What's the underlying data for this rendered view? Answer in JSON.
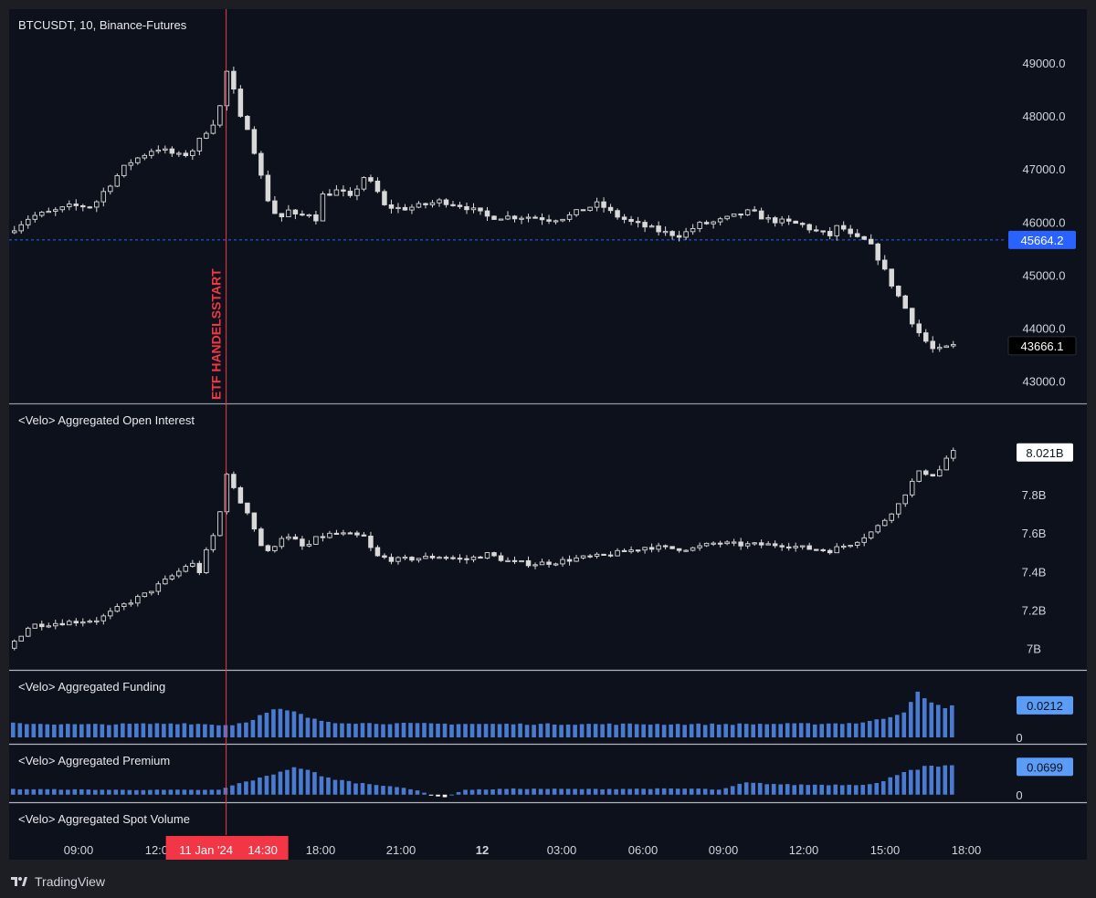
{
  "header": {
    "symbol_title": "BTCUSDT, 10, Binance-Futures"
  },
  "annotation": {
    "label": "ETF HANDELSSTART",
    "color": "#f23645",
    "crosshair_time_label": "11 Jan '24",
    "crosshair_clock_label": "14:30"
  },
  "footer": {
    "brand": "TradingView"
  },
  "colors": {
    "background": "#0d111b",
    "candle_up": "#d9d9d9",
    "candle_down": "#d9d9d9",
    "bar_blue": "#4a7bd0",
    "accent_blue": "#2962ff",
    "separator": "#787b86"
  },
  "chart_data": [
    {
      "type": "candlestick",
      "title": "BTCUSDT, 10, Binance-Futures",
      "ylim": [
        42700,
        49500
      ],
      "yticks": [
        43000,
        44000,
        45000,
        46000,
        47000,
        48000,
        49000
      ],
      "ytick_labels": [
        "43000.0",
        "44000.0",
        "45000.0",
        "46000.0",
        "47000.0",
        "48000.0",
        "49000.0"
      ],
      "last_value_label": "43666.1",
      "horizontal_line": {
        "value": 45664.2,
        "label": "45664.2"
      },
      "close_path": [
        [
          0,
          45800
        ],
        [
          20,
          46100
        ],
        [
          40,
          46200
        ],
        [
          55,
          46300
        ],
        [
          75,
          46300
        ],
        [
          85,
          46600
        ],
        [
          105,
          47100
        ],
        [
          130,
          47400
        ],
        [
          150,
          47250
        ],
        [
          160,
          47300
        ],
        [
          175,
          47750
        ],
        [
          185,
          48000
        ],
        [
          190,
          48900
        ],
        [
          196,
          48700
        ],
        [
          202,
          48000
        ],
        [
          210,
          47800
        ],
        [
          218,
          47200
        ],
        [
          225,
          46600
        ],
        [
          232,
          46200
        ],
        [
          240,
          46100
        ],
        [
          248,
          46250
        ],
        [
          255,
          46000
        ],
        [
          262,
          46300
        ],
        [
          268,
          45900
        ],
        [
          275,
          46500
        ],
        [
          290,
          46600
        ],
        [
          300,
          46450
        ],
        [
          312,
          46850
        ],
        [
          322,
          46650
        ],
        [
          330,
          46300
        ],
        [
          345,
          46250
        ],
        [
          360,
          46300
        ],
        [
          380,
          46400
        ],
        [
          400,
          46300
        ],
        [
          420,
          46100
        ],
        [
          440,
          46100
        ],
        [
          460,
          46100
        ],
        [
          475,
          46050
        ],
        [
          490,
          46100
        ],
        [
          505,
          46250
        ],
        [
          518,
          46350
        ],
        [
          530,
          46150
        ],
        [
          545,
          46000
        ],
        [
          560,
          45900
        ],
        [
          575,
          45800
        ],
        [
          590,
          45750
        ],
        [
          605,
          45950
        ],
        [
          620,
          46000
        ],
        [
          635,
          46100
        ],
        [
          650,
          46200
        ],
        [
          665,
          46050
        ],
        [
          680,
          46000
        ],
        [
          695,
          45950
        ],
        [
          710,
          45800
        ],
        [
          720,
          45750
        ],
        [
          728,
          45950
        ],
        [
          740,
          45700
        ],
        [
          750,
          45650
        ],
        [
          758,
          45500
        ],
        [
          765,
          45200
        ],
        [
          772,
          44900
        ],
        [
          780,
          44600
        ],
        [
          788,
          44300
        ],
        [
          795,
          44000
        ],
        [
          802,
          43800
        ],
        [
          810,
          43600
        ],
        [
          818,
          43580
        ],
        [
          825,
          43666.1
        ]
      ]
    },
    {
      "type": "candlestick",
      "title": "<Velo> Aggregated Open Interest",
      "ylim": [
        6.93,
        8.12
      ],
      "yticks": [
        7.0,
        7.2,
        7.4,
        7.6,
        7.8
      ],
      "ytick_labels": [
        "7B",
        "7.2B",
        "7.4B",
        "7.6B",
        "7.8B"
      ],
      "last_value_label": "8.021B",
      "close_path": [
        [
          0,
          7.0
        ],
        [
          20,
          7.12
        ],
        [
          40,
          7.13
        ],
        [
          60,
          7.14
        ],
        [
          80,
          7.15
        ],
        [
          100,
          7.22
        ],
        [
          120,
          7.28
        ],
        [
          135,
          7.34
        ],
        [
          150,
          7.4
        ],
        [
          160,
          7.45
        ],
        [
          168,
          7.4
        ],
        [
          175,
          7.52
        ],
        [
          185,
          7.65
        ],
        [
          190,
          7.95
        ],
        [
          196,
          7.85
        ],
        [
          205,
          7.75
        ],
        [
          212,
          7.7
        ],
        [
          220,
          7.55
        ],
        [
          228,
          7.5
        ],
        [
          240,
          7.58
        ],
        [
          250,
          7.57
        ],
        [
          260,
          7.52
        ],
        [
          270,
          7.57
        ],
        [
          285,
          7.6
        ],
        [
          300,
          7.59
        ],
        [
          312,
          7.58
        ],
        [
          322,
          7.48
        ],
        [
          340,
          7.46
        ],
        [
          360,
          7.47
        ],
        [
          380,
          7.48
        ],
        [
          400,
          7.46
        ],
        [
          420,
          7.49
        ],
        [
          440,
          7.45
        ],
        [
          460,
          7.44
        ],
        [
          480,
          7.45
        ],
        [
          500,
          7.47
        ],
        [
          520,
          7.48
        ],
        [
          545,
          7.51
        ],
        [
          560,
          7.53
        ],
        [
          580,
          7.52
        ],
        [
          600,
          7.52
        ],
        [
          620,
          7.55
        ],
        [
          640,
          7.54
        ],
        [
          660,
          7.54
        ],
        [
          680,
          7.54
        ],
        [
          700,
          7.52
        ],
        [
          720,
          7.51
        ],
        [
          740,
          7.55
        ],
        [
          755,
          7.6
        ],
        [
          765,
          7.65
        ],
        [
          772,
          7.7
        ],
        [
          780,
          7.75
        ],
        [
          790,
          7.85
        ],
        [
          800,
          7.93
        ],
        [
          808,
          7.9
        ],
        [
          815,
          7.92
        ],
        [
          825,
          8.021
        ]
      ]
    },
    {
      "type": "bar",
      "title": "<Velo> Aggregated Funding",
      "ylim": [
        0,
        0.032
      ],
      "yticks": [
        0
      ],
      "ytick_labels": [
        "0"
      ],
      "last_value_label": "0.0212",
      "profile": [
        [
          0,
          0.0093
        ],
        [
          60,
          0.0085
        ],
        [
          120,
          0.009
        ],
        [
          150,
          0.0093
        ],
        [
          190,
          0.008
        ],
        [
          205,
          0.0105
        ],
        [
          218,
          0.015
        ],
        [
          230,
          0.0185
        ],
        [
          245,
          0.017
        ],
        [
          262,
          0.012
        ],
        [
          280,
          0.01
        ],
        [
          310,
          0.0093
        ],
        [
          420,
          0.0088
        ],
        [
          540,
          0.0088
        ],
        [
          600,
          0.0087
        ],
        [
          700,
          0.009
        ],
        [
          740,
          0.0095
        ],
        [
          760,
          0.012
        ],
        [
          780,
          0.017
        ],
        [
          790,
          0.03
        ],
        [
          800,
          0.024
        ],
        [
          812,
          0.02
        ],
        [
          825,
          0.0212
        ]
      ]
    },
    {
      "type": "bar",
      "title": "<Velo> Aggregated Premium",
      "ylim": [
        -0.012,
        0.082
      ],
      "yticks": [
        0
      ],
      "ytick_labels": [
        "0"
      ],
      "last_value_label": "0.0699",
      "profile": [
        [
          0,
          0.014
        ],
        [
          100,
          0.012
        ],
        [
          180,
          0.012
        ],
        [
          200,
          0.03
        ],
        [
          220,
          0.044
        ],
        [
          240,
          0.065
        ],
        [
          255,
          0.068
        ],
        [
          270,
          0.045
        ],
        [
          300,
          0.03
        ],
        [
          330,
          0.022
        ],
        [
          355,
          0.01
        ],
        [
          370,
          -0.004
        ],
        [
          378,
          -0.006
        ],
        [
          395,
          0.012
        ],
        [
          440,
          0.015
        ],
        [
          500,
          0.014
        ],
        [
          560,
          0.015
        ],
        [
          600,
          0.015
        ],
        [
          620,
          0.012
        ],
        [
          640,
          0.03
        ],
        [
          680,
          0.025
        ],
        [
          740,
          0.025
        ],
        [
          760,
          0.03
        ],
        [
          780,
          0.06
        ],
        [
          800,
          0.07
        ],
        [
          825,
          0.0699
        ]
      ]
    },
    {
      "type": "bar",
      "title": "<Velo> Aggregated Spot Volume"
    }
  ],
  "time_axis": {
    "labels": [
      "09:00",
      "12:00",
      "18:00",
      "21:00",
      "12",
      "03:00",
      "06:00",
      "09:00",
      "12:00",
      "15:00",
      "18:00"
    ],
    "bold": [
      false,
      false,
      false,
      false,
      true,
      false,
      false,
      false,
      false,
      false,
      false
    ]
  }
}
